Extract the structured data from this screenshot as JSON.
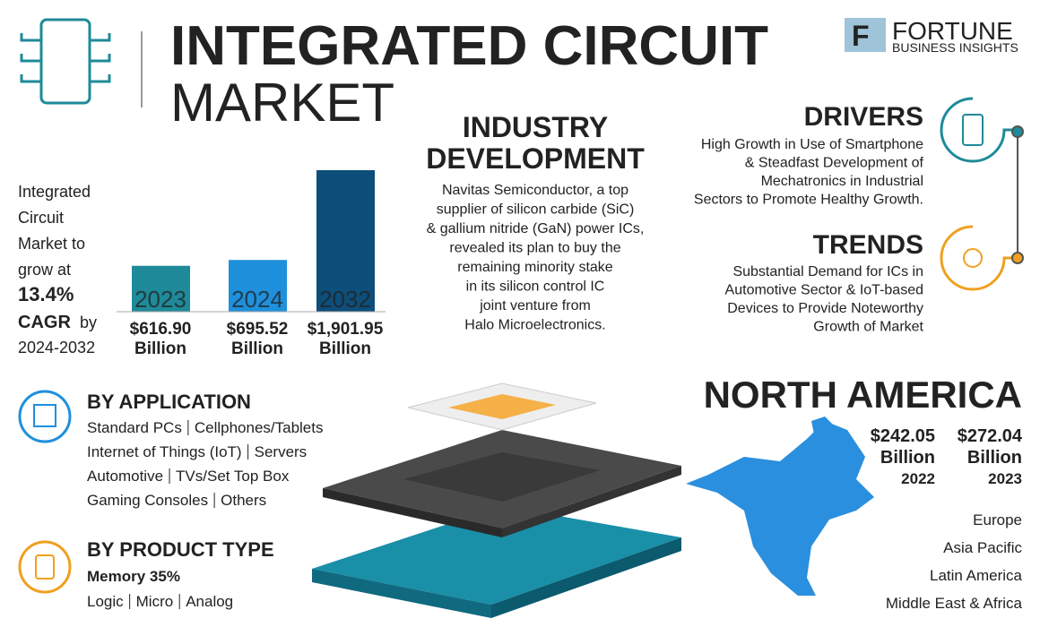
{
  "header": {
    "title_line1": "INTEGRATED CIRCUIT",
    "title_line2": "MARKET",
    "brand": "FORTUNE",
    "brand_sub": "BUSINESS INSIGHTS"
  },
  "growth": {
    "lines": [
      "Integrated",
      "Circuit",
      "Market to",
      "grow at"
    ],
    "rate": "13.4%",
    "cagr": "CAGR",
    "by": "by",
    "period": "2024-2032"
  },
  "chart_data": {
    "type": "bar",
    "categories": [
      "2023",
      "2024",
      "2032"
    ],
    "values": [
      616.9,
      695.52,
      1901.95
    ],
    "value_labels": [
      "$616.90",
      "$695.52",
      "$1,901.95"
    ],
    "unit": "Billion",
    "colors": [
      "#1f8a99",
      "#1e90dc",
      "#0d4e7a"
    ]
  },
  "industry": {
    "title_lines": [
      "INDUSTRY",
      "DEVELOPMENT"
    ],
    "body_lines": [
      "Navitas Semiconductor, a top",
      "supplier of silicon carbide (SiC)",
      "& gallium nitride (GaN) power ICs,",
      "revealed its plan to buy the",
      "remaining minority stake",
      "in its silicon control IC",
      "joint venture from",
      "Halo Microelectronics."
    ]
  },
  "drivers": {
    "title": "DRIVERS",
    "body_lines": [
      "High Growth in Use of Smartphone",
      "& Steadfast Development of",
      "Mechatronics in Industrial",
      "Sectors to Promote Healthy Growth."
    ]
  },
  "trends": {
    "title": "TRENDS",
    "body_lines": [
      "Substantial Demand for ICs in",
      "Automotive Sector & IoT-based",
      "Devices to Provide Noteworthy",
      "Growth of Market"
    ]
  },
  "application": {
    "title": "BY APPLICATION",
    "rows": [
      [
        "Standard PCs",
        "Cellphones/Tablets"
      ],
      [
        "Internet of Things (IoT)",
        "Servers"
      ],
      [
        "Automotive",
        "TVs/Set Top Box"
      ],
      [
        "Gaming Consoles",
        "Others"
      ]
    ]
  },
  "product": {
    "title": "BY PRODUCT TYPE",
    "highlight": "Memory 35%",
    "items": [
      "Logic",
      "Micro",
      "Analog"
    ]
  },
  "region": {
    "title": "NORTH AMERICA",
    "stats": [
      {
        "value": "$242.05",
        "unit": "Billion",
        "year": "2022"
      },
      {
        "value": "$272.04",
        "unit": "Billion",
        "year": "2023"
      }
    ],
    "others": [
      "Europe",
      "Asia Pacific",
      "Latin America",
      "Middle East & Africa"
    ]
  }
}
